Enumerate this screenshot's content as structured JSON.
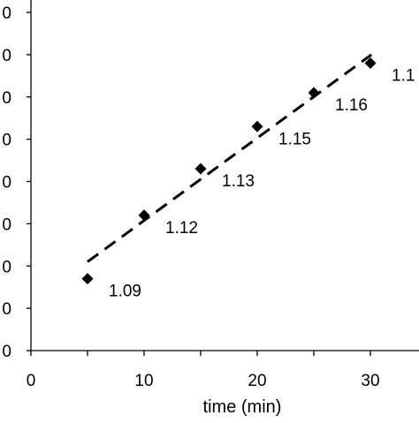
{
  "chart_data": {
    "type": "scatter",
    "title": "",
    "xlabel": "time (min)",
    "ylabel": "",
    "xlim": [
      0,
      35
    ],
    "ylim": [
      0,
      8
    ],
    "x_ticks": [
      0,
      10,
      20,
      30
    ],
    "x_tick_labels": [
      "0",
      "10",
      "20",
      "30"
    ],
    "y_ticks": [
      0,
      1,
      2,
      3,
      4,
      5,
      6,
      7,
      8
    ],
    "y_tick_labels": [
      "0",
      "0",
      "0",
      "0",
      "0",
      "0",
      "0",
      "0",
      "0"
    ],
    "grid": false,
    "legend": false,
    "series": [
      {
        "marker": "diamond",
        "color": "#000000",
        "x": [
          5,
          10,
          15,
          20,
          25,
          30
        ],
        "y": [
          1.7,
          3.2,
          4.3,
          5.3,
          6.1,
          6.8
        ],
        "labels": [
          "1.09",
          "1.12",
          "1.13",
          "1.15",
          "1.16",
          "1.1"
        ]
      }
    ],
    "trendline": {
      "style": "dashed",
      "color": "#000000",
      "x": [
        5,
        30.1
      ],
      "y": [
        2.1,
        7.0
      ]
    }
  }
}
